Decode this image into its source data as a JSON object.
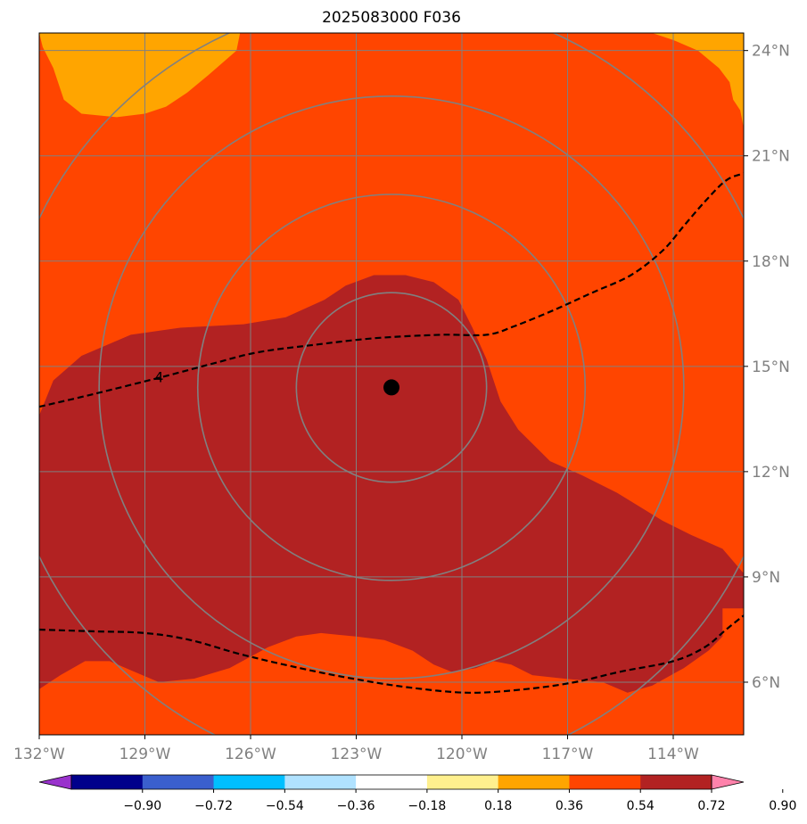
{
  "chart_data": {
    "type": "map-contour",
    "title": "2025083000 F036",
    "lon_range": [
      -132,
      -112
    ],
    "lat_range": [
      4.5,
      24.5
    ],
    "x_ticks": [
      {
        "value": -132,
        "label": "132°W"
      },
      {
        "value": -129,
        "label": "129°W"
      },
      {
        "value": -126,
        "label": "126°W"
      },
      {
        "value": -123,
        "label": "123°W"
      },
      {
        "value": -120,
        "label": "120°W"
      },
      {
        "value": -117,
        "label": "117°W"
      },
      {
        "value": -114,
        "label": "114°W"
      }
    ],
    "y_ticks": [
      {
        "value": 24,
        "label": "24°N"
      },
      {
        "value": 21,
        "label": "21°N"
      },
      {
        "value": 18,
        "label": "18°N"
      },
      {
        "value": 15,
        "label": "15°N"
      },
      {
        "value": 12,
        "label": "12°N"
      },
      {
        "value": 9,
        "label": "9°N"
      },
      {
        "value": 6,
        "label": "6°N"
      }
    ],
    "center": {
      "lon": -122.0,
      "lat": 14.4
    },
    "range_rings_deg": [
      2.7,
      5.5,
      8.3,
      11.1
    ],
    "annotation": {
      "text": "4",
      "lon": -128.6,
      "lat": 14.7
    },
    "colorbar": {
      "colors": [
        "#9932cc",
        "#00008b",
        "#3a5fcd",
        "#00bfff",
        "#b0e2ff",
        "#ffffff",
        "#fff08e",
        "#ffa500",
        "#ff4500",
        "#b22222",
        "#ff82ab"
      ],
      "ticks": [
        "−0.90",
        "−0.72",
        "−0.54",
        "−0.36",
        "−0.18",
        "0.18",
        "0.36",
        "0.54",
        "0.72",
        "0.90"
      ]
    },
    "fill_levels": {
      "level_054_072": "#ff4500",
      "level_036_054": "#ffa500",
      "level_072_090": "#b22222"
    },
    "regions": {
      "nw_orange": [
        [
          -132,
          24.5
        ],
        [
          -129,
          24.5
        ],
        [
          -128,
          24.5
        ],
        [
          -126.3,
          24.5
        ],
        [
          -126.4,
          24
        ],
        [
          -127.2,
          23.3
        ],
        [
          -127.8,
          22.8
        ],
        [
          -128.4,
          22.4
        ],
        [
          -129,
          22.2
        ],
        [
          -129.8,
          22.1
        ],
        [
          -130.8,
          22.2
        ],
        [
          -131.3,
          22.6
        ],
        [
          -131.6,
          23.5
        ],
        [
          -131.9,
          24.1
        ]
      ],
      "ne_orange": [
        [
          -114.6,
          24.5
        ],
        [
          -112,
          24.5
        ],
        [
          -112,
          21.8
        ],
        [
          -112.1,
          22.3
        ],
        [
          -112.3,
          22.6
        ],
        [
          -112.4,
          23.1
        ],
        [
          -112.7,
          23.5
        ],
        [
          -113.3,
          24
        ],
        [
          -114,
          24.3
        ]
      ],
      "dark_red": [
        [
          -132,
          13.6
        ],
        [
          -131.6,
          14.6
        ],
        [
          -130.8,
          15.3
        ],
        [
          -129.4,
          15.9
        ],
        [
          -128,
          16.1
        ],
        [
          -126.2,
          16.2
        ],
        [
          -125,
          16.4
        ],
        [
          -123.9,
          16.9
        ],
        [
          -123.3,
          17.3
        ],
        [
          -122.5,
          17.6
        ],
        [
          -121.6,
          17.6
        ],
        [
          -120.8,
          17.4
        ],
        [
          -120.1,
          16.9
        ],
        [
          -119.7,
          16.1
        ],
        [
          -119.3,
          15.2
        ],
        [
          -118.9,
          14
        ],
        [
          -118.4,
          13.2
        ],
        [
          -117.5,
          12.3
        ],
        [
          -116.6,
          11.9
        ],
        [
          -115.6,
          11.4
        ],
        [
          -114.3,
          10.6
        ],
        [
          -113.5,
          10.2
        ],
        [
          -112.6,
          9.8
        ],
        [
          -112,
          9.1
        ],
        [
          -112,
          8.1
        ],
        [
          -112.6,
          8.1
        ],
        [
          -112.6,
          7.3
        ],
        [
          -113,
          6.9
        ],
        [
          -113.7,
          6.4
        ],
        [
          -114.6,
          5.9
        ],
        [
          -115.3,
          5.7
        ],
        [
          -116,
          6
        ],
        [
          -117.1,
          6.1
        ],
        [
          -118,
          6.2
        ],
        [
          -118.6,
          6.5
        ],
        [
          -119.1,
          6.6
        ],
        [
          -119.6,
          6.4
        ],
        [
          -120.3,
          6.3
        ],
        [
          -120.8,
          6.5
        ],
        [
          -121.4,
          6.9
        ],
        [
          -122.2,
          7.2
        ],
        [
          -123,
          7.3
        ],
        [
          -124,
          7.4
        ],
        [
          -124.7,
          7.3
        ],
        [
          -125.5,
          7
        ],
        [
          -126.6,
          6.4
        ],
        [
          -127.6,
          6.1
        ],
        [
          -128.6,
          6
        ],
        [
          -129.3,
          6.3
        ],
        [
          -130,
          6.6
        ],
        [
          -130.7,
          6.6
        ],
        [
          -131.4,
          6.2
        ],
        [
          -132,
          5.8
        ]
      ],
      "dashed_line_upper": [
        [
          -132,
          13.85
        ],
        [
          -130.5,
          14.2
        ],
        [
          -128.5,
          14.7
        ],
        [
          -127,
          15.1
        ],
        [
          -125.8,
          15.4
        ],
        [
          -124.3,
          15.6
        ],
        [
          -122.5,
          15.8
        ],
        [
          -120.6,
          15.9
        ],
        [
          -119.3,
          15.9
        ],
        [
          -118.5,
          16.15
        ],
        [
          -117.4,
          16.6
        ],
        [
          -116.3,
          17.1
        ],
        [
          -115.2,
          17.6
        ],
        [
          -114.3,
          18.3
        ],
        [
          -113.7,
          19
        ],
        [
          -113.1,
          19.7
        ],
        [
          -112.5,
          20.3
        ],
        [
          -112,
          20.5
        ]
      ],
      "dashed_line_lower": [
        [
          -132,
          7.5
        ],
        [
          -130.5,
          7.45
        ],
        [
          -129,
          7.4
        ],
        [
          -127.7,
          7.2
        ],
        [
          -126.3,
          6.8
        ],
        [
          -124.6,
          6.4
        ],
        [
          -123.1,
          6.1
        ],
        [
          -121.5,
          5.85
        ],
        [
          -119.8,
          5.7
        ],
        [
          -118.2,
          5.8
        ],
        [
          -116.8,
          6
        ],
        [
          -115.5,
          6.3
        ],
        [
          -114,
          6.6
        ],
        [
          -113.1,
          7
        ],
        [
          -112.5,
          7.5
        ],
        [
          -112,
          7.9
        ]
      ]
    }
  }
}
